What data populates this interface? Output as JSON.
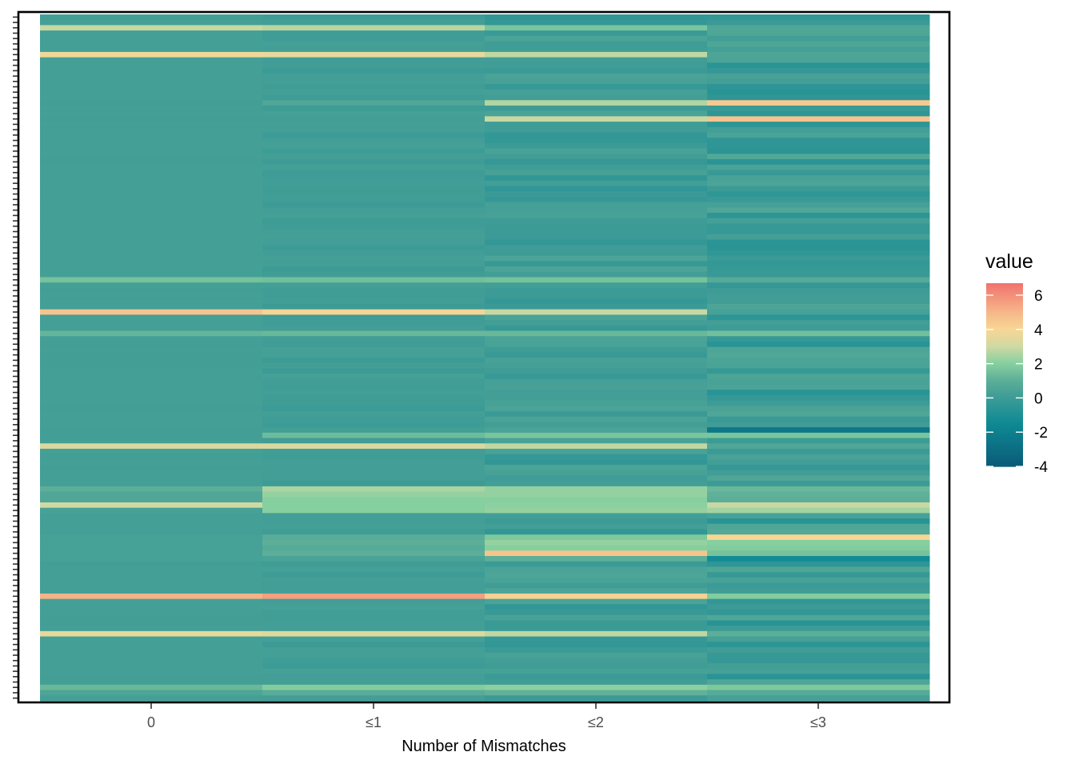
{
  "chart_data": {
    "type": "heatmap",
    "xlabel": "Number of Mismatches",
    "ylabel": "",
    "categories": [
      "0",
      "≤1",
      "≤2",
      "≤3"
    ],
    "row_count": 128,
    "row_labels_visible": false,
    "legend": {
      "title": "value",
      "position": "right",
      "ticks": [
        6,
        4,
        2,
        0,
        -2,
        -4
      ],
      "range": [
        -4,
        6.7
      ]
    },
    "colorscale": [
      {
        "value": -4,
        "color": "#0b5a78"
      },
      {
        "value": -1.5,
        "color": "#0e8a94"
      },
      {
        "value": 0,
        "color": "#3d9b96"
      },
      {
        "value": 1,
        "color": "#5cae98"
      },
      {
        "value": 2,
        "color": "#86cf9f"
      },
      {
        "value": 3,
        "color": "#cfd9a3"
      },
      {
        "value": 4,
        "color": "#f7d795"
      },
      {
        "value": 5,
        "color": "#f6b78a"
      },
      {
        "value": 6.7,
        "color": "#f0726e"
      }
    ],
    "highlights": [
      {
        "row": 2,
        "values": [
          2.9,
          2.7,
          1.7,
          0.6
        ]
      },
      {
        "row": 7,
        "values": [
          3.8,
          3.6,
          2.8,
          0.5
        ]
      },
      {
        "row": 16,
        "values": [
          0.2,
          0.6,
          2.6,
          4.4
        ]
      },
      {
        "row": 19,
        "values": [
          0.2,
          0.2,
          2.9,
          4.6
        ]
      },
      {
        "row": 49,
        "values": [
          1.6,
          1.5,
          1.6,
          0.8
        ]
      },
      {
        "row": 55,
        "values": [
          4.6,
          4.1,
          2.9,
          0.3
        ]
      },
      {
        "row": 59,
        "values": [
          1.2,
          1.3,
          1.3,
          1.5
        ]
      },
      {
        "row": 77,
        "values": [
          0.2,
          0.2,
          0.4,
          -2.5
        ]
      },
      {
        "row": 78,
        "values": [
          0.2,
          1.4,
          1.7,
          1.7
        ]
      },
      {
        "row": 80,
        "values": [
          3.3,
          3.3,
          2.8,
          0.6
        ]
      },
      {
        "row": 88,
        "values": [
          1.0,
          2.5,
          2.2,
          1.3
        ]
      },
      {
        "row": 89,
        "values": [
          0.6,
          2.2,
          2.2,
          1.1
        ]
      },
      {
        "row": 90,
        "values": [
          0.6,
          2.0,
          2.0,
          1.0
        ]
      },
      {
        "row": 91,
        "values": [
          3.0,
          2.0,
          2.1,
          2.9
        ]
      },
      {
        "row": 92,
        "values": [
          0.3,
          2.0,
          2.2,
          2.4
        ]
      },
      {
        "row": 97,
        "values": [
          0.3,
          0.9,
          1.8,
          4.0
        ]
      },
      {
        "row": 98,
        "values": [
          0.3,
          1.0,
          2.2,
          2.0
        ]
      },
      {
        "row": 99,
        "values": [
          0.3,
          0.8,
          2.0,
          1.9
        ]
      },
      {
        "row": 100,
        "values": [
          0.3,
          1.0,
          4.6,
          1.6
        ]
      },
      {
        "row": 101,
        "values": [
          0.3,
          0.4,
          1.0,
          -1.4
        ]
      },
      {
        "row": 108,
        "values": [
          5.1,
          5.6,
          4.2,
          1.9
        ]
      },
      {
        "row": 115,
        "values": [
          3.6,
          3.4,
          2.8,
          1.0
        ]
      },
      {
        "row": 125,
        "values": [
          1.3,
          1.9,
          2.1,
          1.8
        ]
      },
      {
        "row": 126,
        "values": [
          0.5,
          0.9,
          1.1,
          0.8
        ]
      }
    ]
  }
}
